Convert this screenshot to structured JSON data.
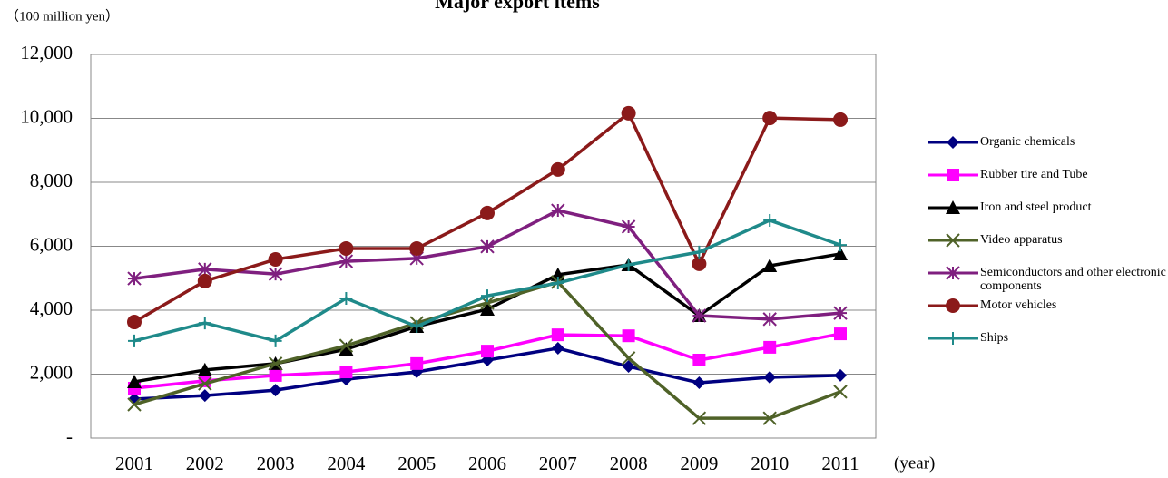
{
  "chart_data": {
    "type": "line",
    "title": "Major export items",
    "y_label": "（100 million yen）",
    "x_label": "(year)",
    "categories": [
      "2001",
      "2002",
      "2003",
      "2004",
      "2005",
      "2006",
      "2007",
      "2008",
      "2009",
      "2010",
      "2011"
    ],
    "ylim": [
      0,
      12000
    ],
    "yticks": [
      {
        "value": 0,
        "label": "-"
      },
      {
        "value": 2000,
        "label": "2,000"
      },
      {
        "value": 4000,
        "label": "4,000"
      },
      {
        "value": 6000,
        "label": "6,000"
      },
      {
        "value": 8000,
        "label": "8,000"
      },
      {
        "value": 10000,
        "label": "10,000"
      },
      {
        "value": 12000,
        "label": "12,000"
      }
    ],
    "grid": true,
    "legend": "right",
    "series": [
      {
        "name": "Organic chemicals",
        "color": "#000080",
        "marker": "diamond",
        "values": [
          1220,
          1330,
          1500,
          1840,
          2070,
          2440,
          2810,
          2240,
          1730,
          1900,
          1960
        ]
      },
      {
        "name": "Rubber tire and Tube",
        "color": "#ff00ff",
        "marker": "square",
        "values": [
          1560,
          1790,
          1960,
          2070,
          2330,
          2720,
          3230,
          3200,
          2440,
          2840,
          3260
        ]
      },
      {
        "name": "Iron and steel product",
        "color": "#000000",
        "marker": "triangle",
        "values": [
          1760,
          2130,
          2330,
          2780,
          3490,
          4030,
          5110,
          5420,
          3830,
          5390,
          5760
        ]
      },
      {
        "name": "Video apparatus",
        "color": "#4f6228",
        "marker": "x",
        "values": [
          1050,
          1700,
          2330,
          2890,
          3600,
          4230,
          4880,
          2500,
          620,
          620,
          1450
        ]
      },
      {
        "name": "Semiconductors and other electronic components",
        "color": "#7f1f7f",
        "marker": "star",
        "values": [
          4990,
          5280,
          5130,
          5530,
          5620,
          5990,
          7120,
          6610,
          3830,
          3720,
          3910
        ]
      },
      {
        "name": "Motor vehicles",
        "color": "#8b1a1a",
        "marker": "circle",
        "values": [
          3630,
          4910,
          5590,
          5930,
          5930,
          7040,
          8400,
          10160,
          5450,
          10010,
          9960
        ]
      },
      {
        "name": "Ships",
        "color": "#1f8a8a",
        "marker": "plus",
        "values": [
          3040,
          3600,
          3040,
          4370,
          3490,
          4450,
          4850,
          5420,
          5820,
          6810,
          6040
        ]
      }
    ]
  }
}
